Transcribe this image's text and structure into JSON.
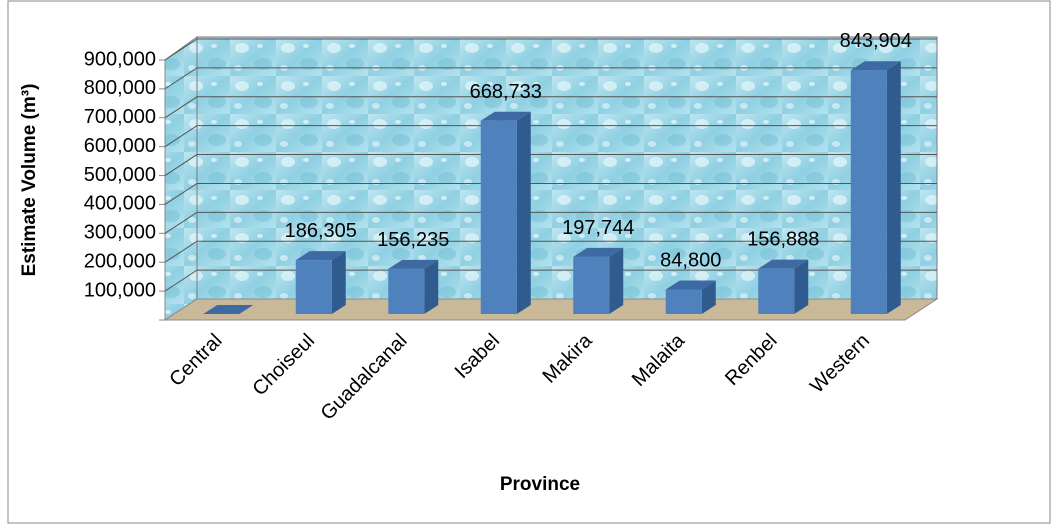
{
  "chart_data": {
    "type": "bar3d",
    "x_label": "Province",
    "y_label": "Estimate Volume (m³)",
    "categories": [
      "Central",
      "Choiseul",
      "Guadalcanal",
      "Isabel",
      "Makira",
      "Malaita",
      "Renbel",
      "Western"
    ],
    "values": [
      0,
      186305,
      156235,
      668733,
      197744,
      84800,
      156888,
      843904
    ],
    "value_labels": [
      null,
      "186,305",
      "156,235",
      "668,733",
      "197,744",
      "84,800",
      "156,888",
      "843,904"
    ],
    "color": "#4f81bd",
    "ylim": [
      0,
      900000
    ],
    "yticks": [
      {
        "value": 100000,
        "label": "100,000"
      },
      {
        "value": 200000,
        "label": "200,000"
      },
      {
        "value": 300000,
        "label": "300,000"
      },
      {
        "value": 400000,
        "label": "400,000"
      },
      {
        "value": 500000,
        "label": "500,000"
      },
      {
        "value": 600000,
        "label": "600,000"
      },
      {
        "value": 700000,
        "label": "700,000"
      },
      {
        "value": 800000,
        "label": "800,000"
      },
      {
        "value": 900000,
        "label": "900,000"
      }
    ],
    "grid": true
  }
}
